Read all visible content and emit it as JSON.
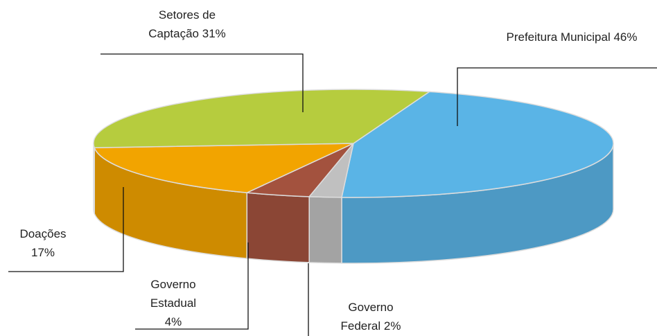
{
  "chart_data": {
    "type": "pie3d",
    "categories": [
      "Prefeitura Municipal",
      "Governo Federal",
      "Governo Estadual",
      "Doações",
      "Setores de Captação"
    ],
    "values": [
      46,
      2,
      4,
      17,
      31
    ],
    "value_labels": [
      "46%",
      "2%",
      "4%",
      "17%",
      "31%"
    ],
    "colors": [
      "#5ab4e6",
      "#c0c0c0",
      "#a3523e",
      "#f2a400",
      "#b6cc3e"
    ]
  }
}
